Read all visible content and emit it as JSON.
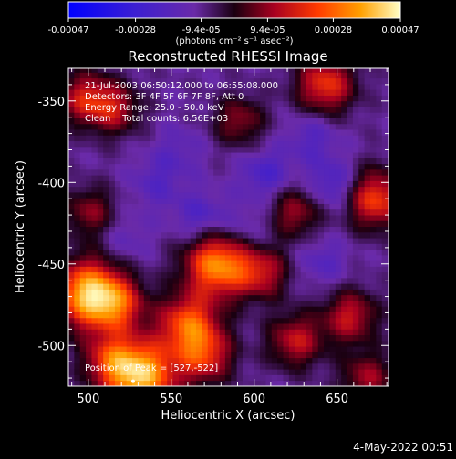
{
  "chart_data": {
    "type": "heatmap",
    "title": "Reconstructed RHESSI Image",
    "xlabel": "Heliocentric X (arcsec)",
    "ylabel": "Heliocentric Y (arcsec)",
    "xlim": [
      488,
      681
    ],
    "ylim": [
      -525,
      -330
    ],
    "x_ticks": [
      500,
      550,
      600,
      650
    ],
    "y_ticks": [
      -350,
      -400,
      -450,
      -500
    ],
    "colorbar": {
      "colormap": "blue-purple-red-yellow-white",
      "range": [
        -0.00047,
        0.00047
      ],
      "tick_labels": [
        "-0.00047",
        "-0.00028",
        "-9.4e-05",
        "9.4e-05",
        "0.00028",
        "0.00047"
      ],
      "units": "(photons cm⁻² s⁻¹ asec⁻²)"
    },
    "annotations": [
      "21-Jul-2003 06:50:12.000 to 06:55:08.000",
      "Detectors: 3F 4F 5F 6F 7F 8F, Att 0",
      "Energy Range: 25.0 - 50.0 keV",
      "Clean    Total counts: 6.56E+03",
      "Position of Peak = [527,-522]"
    ],
    "peak": [
      527,
      -522
    ],
    "bright_regions": [
      {
        "x": 500,
        "y": -468,
        "value": 0.00045
      },
      {
        "x": 531,
        "y": -518,
        "value": 0.00047
      },
      {
        "x": 578,
        "y": -450,
        "value": 0.0004
      },
      {
        "x": 518,
        "y": -475,
        "value": 0.00022
      },
      {
        "x": 560,
        "y": -486,
        "value": 0.0003
      },
      {
        "x": 570,
        "y": -506,
        "value": 0.00026
      },
      {
        "x": 643,
        "y": -340,
        "value": 0.00028
      },
      {
        "x": 673,
        "y": -410,
        "value": 0.0003
      },
      {
        "x": 625,
        "y": -497,
        "value": 0.00022
      },
      {
        "x": 658,
        "y": -482,
        "value": 0.00022
      },
      {
        "x": 498,
        "y": -348,
        "value": 0.00022
      },
      {
        "x": 516,
        "y": -355,
        "value": 0.00018
      },
      {
        "x": 591,
        "y": -362,
        "value": 0.00016
      },
      {
        "x": 625,
        "y": -418,
        "value": 0.00018
      },
      {
        "x": 501,
        "y": -418,
        "value": 0.00016
      },
      {
        "x": 605,
        "y": -455,
        "value": 0.0002
      },
      {
        "x": 668,
        "y": -520,
        "value": 0.00018
      },
      {
        "x": 512,
        "y": -508,
        "value": 0.00018
      }
    ],
    "dim_regions": [
      {
        "x": 648,
        "y": -402,
        "value": -0.00018
      },
      {
        "x": 607,
        "y": -395,
        "value": -0.00016
      },
      {
        "x": 568,
        "y": -422,
        "value": -0.00016
      },
      {
        "x": 635,
        "y": -372,
        "value": -0.00013
      },
      {
        "x": 541,
        "y": -400,
        "value": -0.00012
      },
      {
        "x": 641,
        "y": -448,
        "value": -0.00012
      },
      {
        "x": 595,
        "y": -430,
        "value": -0.00012
      },
      {
        "x": 522,
        "y": -435,
        "value": -0.0001
      },
      {
        "x": 555,
        "y": -380,
        "value": -0.0001
      }
    ]
  },
  "footer": {
    "date": "4-May-2022 00:51"
  }
}
